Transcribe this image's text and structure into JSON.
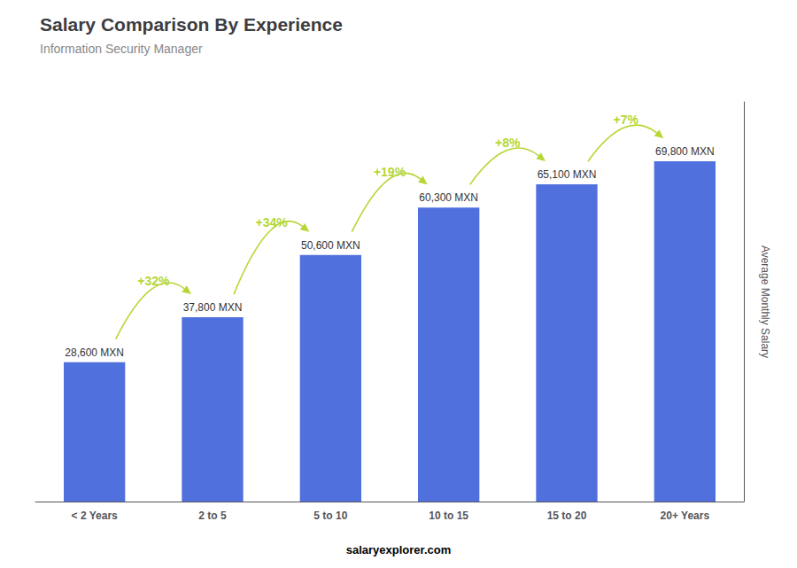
{
  "chart_data": {
    "type": "bar",
    "title": "Salary Comparison By Experience",
    "subtitle": "Information Security Manager",
    "categories": [
      "< 2 Years",
      "2 to 5",
      "5 to 10",
      "10 to 15",
      "15 to 20",
      "20+ Years"
    ],
    "values": [
      28600,
      37800,
      50600,
      60300,
      65100,
      69800
    ],
    "value_labels": [
      "28,600 MXN",
      "37,800 MXN",
      "50,600 MXN",
      "60,300 MXN",
      "65,100 MXN",
      "69,800 MXN"
    ],
    "data_labels": true,
    "annotations": [
      "+32%",
      "+34%",
      "+19%",
      "+8%",
      "+7%"
    ],
    "ylabel": "Average Monthly Salary",
    "footer": "salaryexplorer.com",
    "ylim": [
      0,
      82000
    ],
    "grid": false,
    "tick_labels": "x"
  }
}
